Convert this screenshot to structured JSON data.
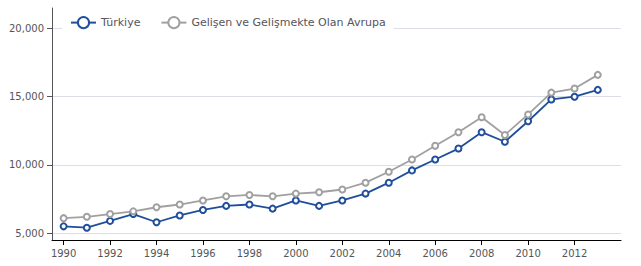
{
  "chart_data": {
    "type": "line",
    "x": [
      1990,
      1991,
      1992,
      1993,
      1994,
      1995,
      1996,
      1997,
      1998,
      1999,
      2000,
      2001,
      2002,
      2003,
      2004,
      2005,
      2006,
      2007,
      2008,
      2009,
      2010,
      2011,
      2012,
      2013
    ],
    "series": [
      {
        "name": "Türkiye",
        "color": "#1f4e9c",
        "values": [
          5500,
          5400,
          5900,
          6400,
          5800,
          6300,
          6700,
          7000,
          7100,
          6800,
          7400,
          7000,
          7400,
          7900,
          8700,
          9600,
          10400,
          11200,
          12400,
          11700,
          13200,
          14800,
          15000,
          15500
        ]
      },
      {
        "name": "Gelişen ve Gelişmekte Olan Avrupa",
        "color": "#a0a0a0",
        "values": [
          6100,
          6200,
          6400,
          6600,
          6900,
          7100,
          7400,
          7700,
          7800,
          7700,
          7900,
          8000,
          8200,
          8700,
          9500,
          10400,
          11400,
          12400,
          13500,
          12200,
          13700,
          15300,
          15600,
          16600
        ]
      }
    ],
    "xlim": [
      1989.5,
      2014.0
    ],
    "xticks": [
      1990,
      1992,
      1994,
      1996,
      1998,
      2000,
      2002,
      2004,
      2006,
      2008,
      2010,
      2012
    ],
    "ylim": [
      4500,
      21500
    ],
    "yticks": [
      {
        "value": 5000,
        "label": "5,000"
      },
      {
        "value": 10000,
        "label": "10,000"
      },
      {
        "value": 15000,
        "label": "15,000"
      },
      {
        "value": 20000,
        "label": "20,000"
      }
    ],
    "grid": true,
    "legend": "upper left",
    "marker": "circle"
  }
}
